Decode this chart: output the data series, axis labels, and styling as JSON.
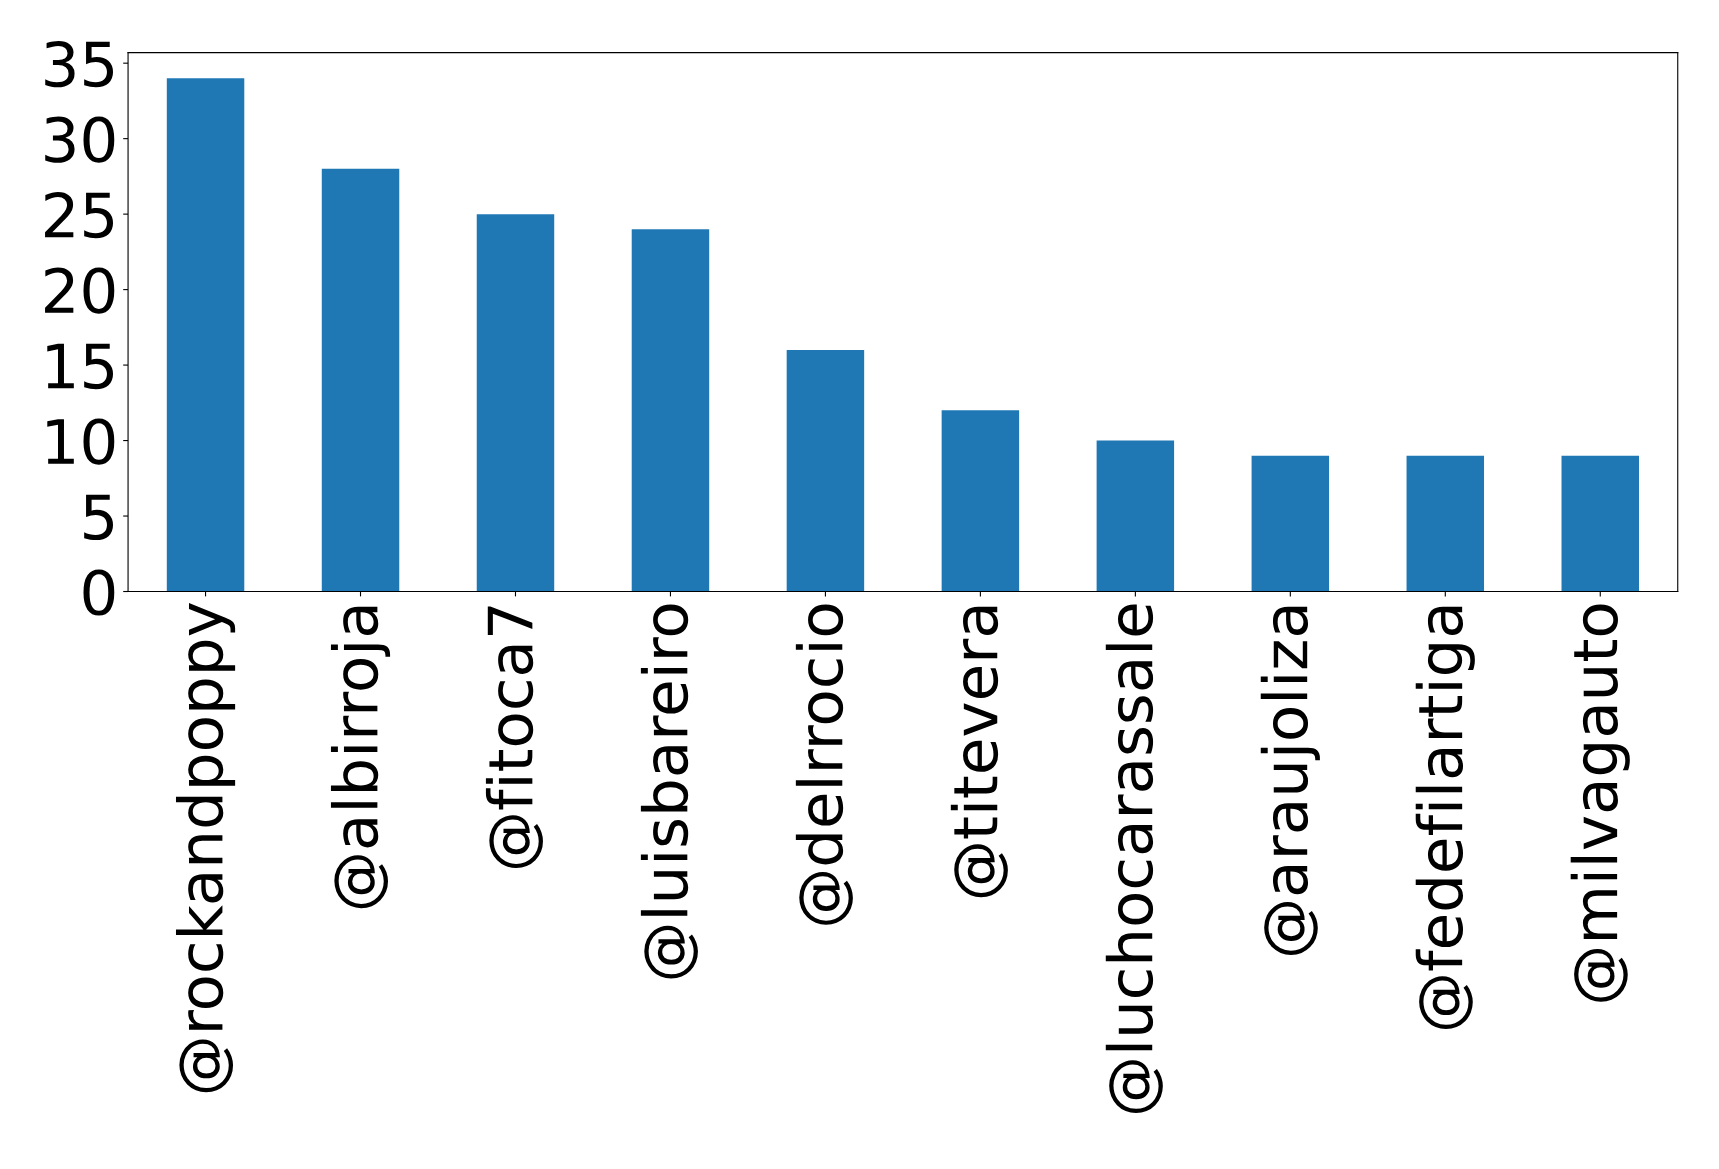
{
  "chart_data": {
    "type": "bar",
    "categories": [
      "@rockandpoppy",
      "@albirroja",
      "@fitoca7",
      "@luisbareiro",
      "@delrrocio",
      "@titevera",
      "@luchocarassale",
      "@araujoliza",
      "@fedefilartiga",
      "@milvagauto"
    ],
    "values": [
      34,
      28,
      25,
      24,
      16,
      12,
      10,
      9,
      9,
      9
    ],
    "color": "#1f77b4",
    "ylim": [
      0,
      35.7
    ],
    "yticks": [
      0,
      5,
      10,
      15,
      20,
      25,
      30,
      35
    ],
    "grid": false
  }
}
